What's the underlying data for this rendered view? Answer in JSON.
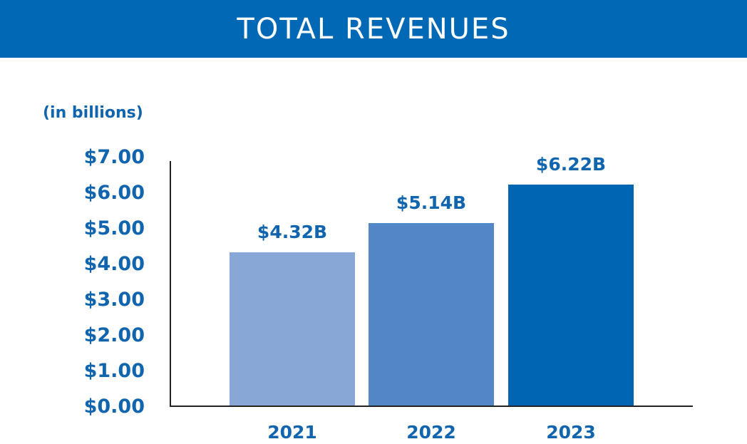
{
  "header": {
    "title": "TOTAL REVENUES"
  },
  "chart_data": {
    "type": "bar",
    "title": "TOTAL REVENUES",
    "unit_note": "(in billions)",
    "xlabel": "",
    "ylabel": "",
    "categories": [
      "2021",
      "2022",
      "2023"
    ],
    "values": [
      4.32,
      5.14,
      6.22
    ],
    "data_labels": [
      "$4.32B",
      "$5.14B",
      "$6.22B"
    ],
    "ylim": [
      0,
      7
    ],
    "yticks": [
      0,
      1,
      2,
      3,
      4,
      5,
      6,
      7
    ],
    "ytick_labels": [
      "$0.00",
      "$1.00",
      "$2.00",
      "$3.00",
      "$4.00",
      "$5.00",
      "$6.00",
      "$7.00"
    ],
    "grid": false,
    "legend": "none"
  },
  "colors": {
    "banner": "#0068b4",
    "text": "#1164ae",
    "axis": "#222222",
    "bars": [
      "#88a6d6",
      "#5386c6",
      "#0065b3"
    ]
  }
}
